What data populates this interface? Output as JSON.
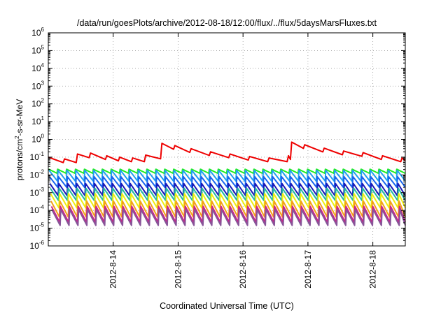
{
  "chart_data": {
    "type": "line",
    "title": "/data/run/goesPlots/archive/2012-08-18/12:00/flux/../flux/5daysMarsFluxes.txt",
    "xlabel": "Coordinated Universal Time (UTC)",
    "ylabel_parts": [
      "protons/cm",
      "2",
      "-s-sr-MeV"
    ],
    "y_scale": "log",
    "ylim_exponents": [
      -6,
      6
    ],
    "y_tick_exponents": [
      -6,
      -5,
      -4,
      -3,
      -2,
      -1,
      0,
      1,
      2,
      3,
      4,
      5,
      6
    ],
    "y_tick_base": "10",
    "xlim_days": [
      13.0,
      18.5
    ],
    "x_ticks": [
      {
        "label": "2012-8-14",
        "day": 14
      },
      {
        "label": "2012-8-15",
        "day": 15
      },
      {
        "label": "2012-8-16",
        "day": 16
      },
      {
        "label": "2012-8-17",
        "day": 17
      },
      {
        "label": "2012-8-18",
        "day": 18
      }
    ],
    "grid": true,
    "series": [
      {
        "color": "#ee0000",
        "kind": "red",
        "peaks": [
          [
            13.0,
            0.1
          ],
          [
            13.25,
            0.08
          ],
          [
            13.45,
            0.15
          ],
          [
            13.65,
            0.17
          ],
          [
            13.9,
            0.12
          ],
          [
            14.1,
            0.1
          ],
          [
            14.3,
            0.09
          ],
          [
            14.5,
            0.13
          ],
          [
            14.75,
            0.6
          ],
          [
            14.95,
            0.45
          ],
          [
            15.2,
            0.3
          ],
          [
            15.5,
            0.2
          ],
          [
            15.8,
            0.15
          ],
          [
            16.1,
            0.11
          ],
          [
            16.4,
            0.09
          ],
          [
            16.7,
            0.12
          ],
          [
            16.75,
            0.7
          ],
          [
            16.95,
            0.5
          ],
          [
            17.25,
            0.32
          ],
          [
            17.55,
            0.22
          ],
          [
            17.85,
            0.18
          ],
          [
            18.15,
            0.12
          ],
          [
            18.45,
            0.09
          ]
        ]
      },
      {
        "color": "#22ee22",
        "base": 0.016,
        "amp": 1.3
      },
      {
        "color": "#1f9fef",
        "base": 0.009,
        "amp": 2.0
      },
      {
        "color": "#1a66ee",
        "base": 0.004,
        "amp": 2.0
      },
      {
        "color": "#1a1ab8",
        "base": 0.0015,
        "amp": 2.2
      },
      {
        "color": "#22b8a0",
        "base": 0.0008,
        "amp": 2.2
      },
      {
        "color": "#eeee11",
        "base": 0.00035,
        "amp": 2.5
      },
      {
        "color": "#f2a218",
        "base": 0.00012,
        "amp": 2.8
      },
      {
        "color": "#cc2288",
        "base": 6e-05,
        "amp": 2.8
      },
      {
        "color": "#885599",
        "base": 4e-05,
        "amp": 2.8
      }
    ]
  }
}
